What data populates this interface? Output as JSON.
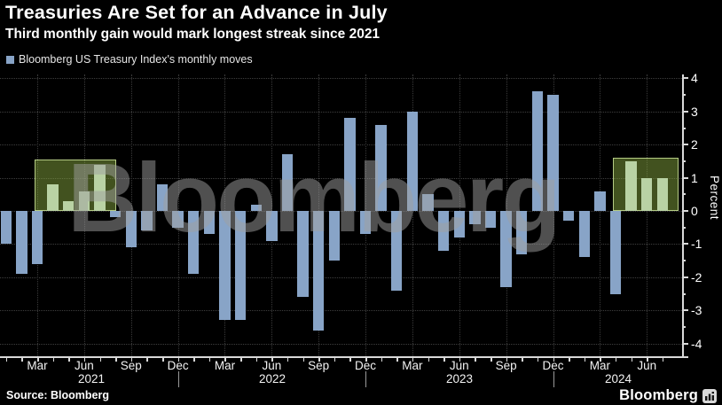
{
  "header": {
    "title": "Treasuries Are Set for an Advance in July",
    "subtitle": "Third monthly gain would mark longest streak since 2021"
  },
  "legend": {
    "label": "Bloomberg US Treasury Index's monthly moves",
    "swatch_color": "#88a4c7"
  },
  "watermark": "Bloomberg",
  "footer": {
    "source": "Source: Bloomberg",
    "logo_text": "Bloomberg",
    "logo_icon": "bar-chart-icon"
  },
  "chart_data": {
    "type": "bar",
    "title": "Treasuries Are Set for an Advance in July",
    "subtitle": "Third monthly gain would mark longest streak since 2021",
    "series_name": "Bloomberg US Treasury Index's monthly moves",
    "xlabel": "",
    "ylabel": "Percent",
    "ylim": [
      -4.4,
      4.2
    ],
    "grid": "dotted",
    "legend_position": "top-left",
    "yticks": [
      "4",
      "3",
      "2",
      "1",
      "0",
      "-1",
      "-2",
      "-3",
      "-4"
    ],
    "xtick_months_shown": [
      "Mar",
      "Jun",
      "Sep",
      "Dec"
    ],
    "years": [
      "2021",
      "2022",
      "2023",
      "2024"
    ],
    "x": [
      "Jan 2021",
      "Feb 2021",
      "Mar 2021",
      "Apr 2021",
      "May 2021",
      "Jun 2021",
      "Jul 2021",
      "Aug 2021",
      "Sep 2021",
      "Oct 2021",
      "Nov 2021",
      "Dec 2021",
      "Jan 2022",
      "Feb 2022",
      "Mar 2022",
      "Apr 2022",
      "May 2022",
      "Jun 2022",
      "Jul 2022",
      "Aug 2022",
      "Sep 2022",
      "Oct 2022",
      "Nov 2022",
      "Dec 2022",
      "Jan 2023",
      "Feb 2023",
      "Mar 2023",
      "Apr 2023",
      "May 2023",
      "Jun 2023",
      "Jul 2023",
      "Aug 2023",
      "Sep 2023",
      "Oct 2023",
      "Nov 2023",
      "Dec 2023",
      "Jan 2024",
      "Feb 2024",
      "Mar 2024",
      "Apr 2024",
      "May 2024",
      "Jun 2024",
      "Jul 2024"
    ],
    "values": [
      -1.0,
      -1.9,
      -1.6,
      0.8,
      0.3,
      0.6,
      1.4,
      -0.2,
      -1.1,
      -0.6,
      0.8,
      -0.5,
      -1.9,
      -0.7,
      -3.3,
      -3.3,
      0.2,
      -0.9,
      1.7,
      -2.6,
      -3.6,
      -1.5,
      2.8,
      -0.7,
      2.6,
      -2.4,
      3.0,
      0.5,
      -1.2,
      -0.8,
      -0.4,
      -0.5,
      -2.3,
      -1.3,
      3.6,
      3.5,
      -0.3,
      -1.4,
      0.6,
      -2.5,
      1.5,
      1.0,
      1.0
    ],
    "bar_color": "#88a4c7",
    "highlight_bar_color": "#b9d2a4",
    "highlight_box_fill": "rgba(137,172,64,0.48)",
    "highlight_box_border": "#b5cc85",
    "highlights": [
      {
        "start": "Apr 2021",
        "end": "Jul 2021",
        "start_index": 3,
        "end_index": 6,
        "box_top_value": 1.55
      },
      {
        "start": "May 2024",
        "end": "Jul 2024",
        "start_index": 40,
        "end_index": 42,
        "box_top_value": 1.6
      }
    ]
  }
}
